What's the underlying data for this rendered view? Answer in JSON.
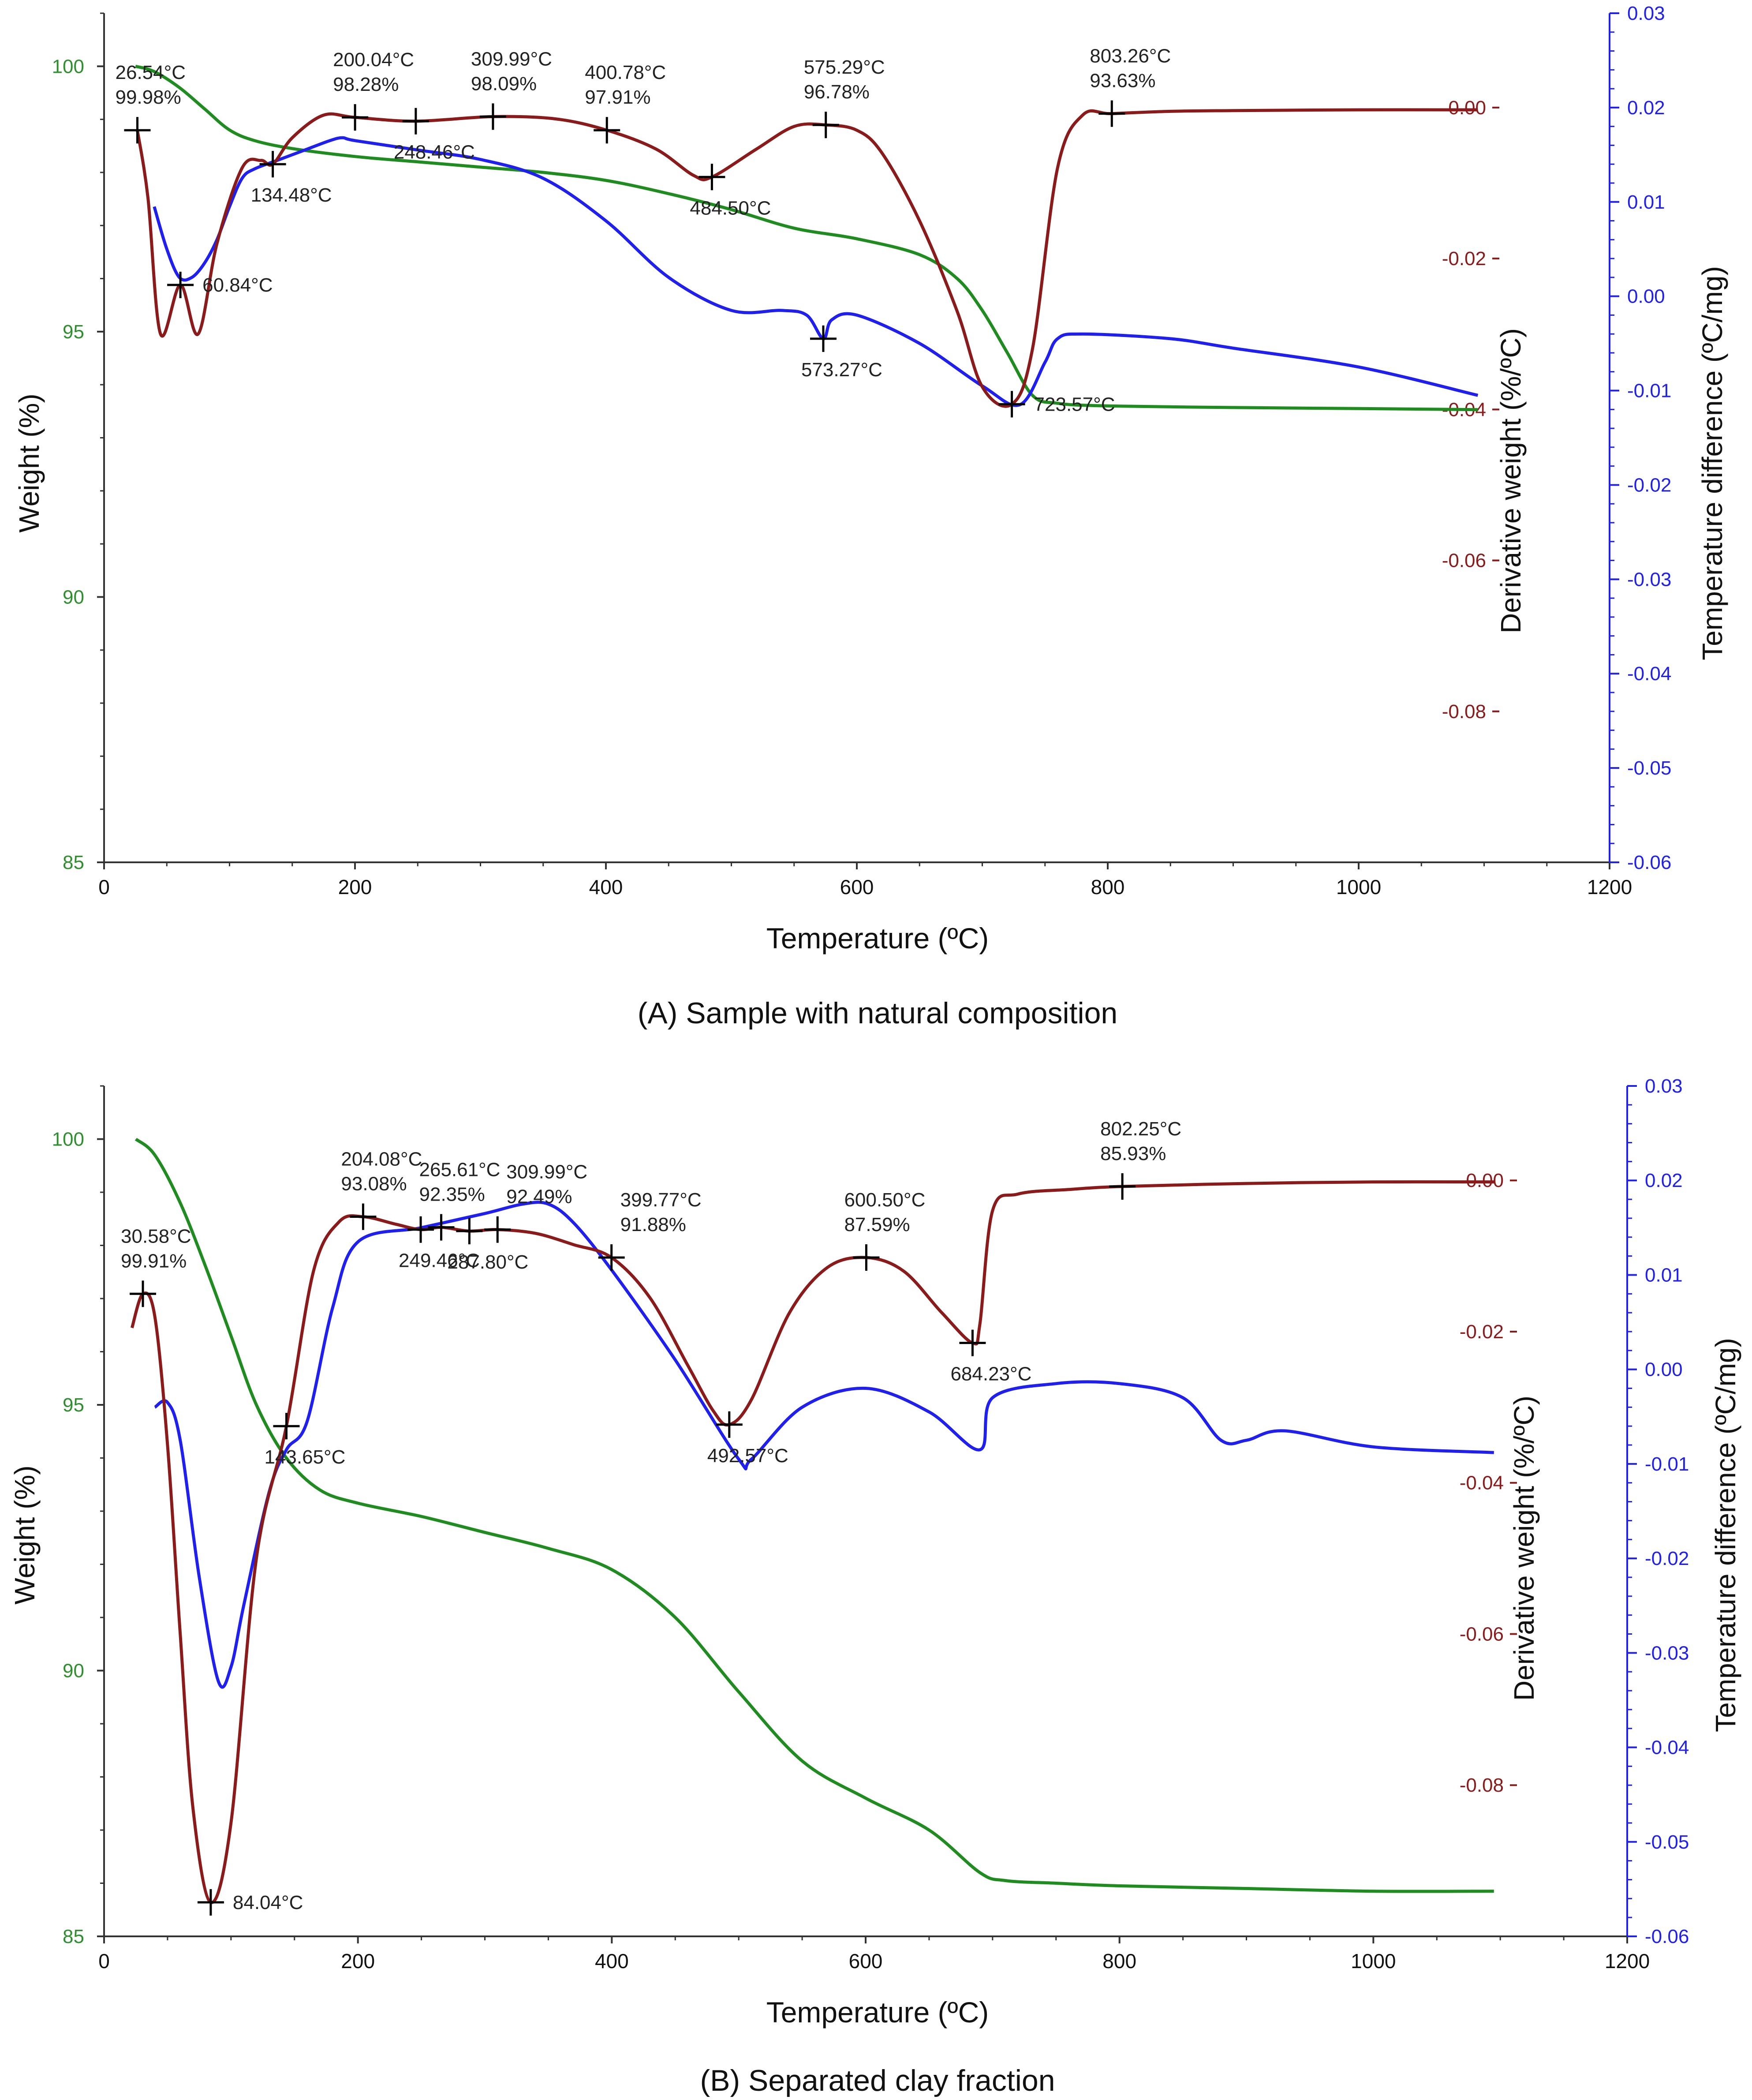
{
  "chart_data": [
    {
      "type": "line",
      "caption": "(A) Sample with natural composition",
      "xlabel": "Temperature (ºC)",
      "ylabel_left": "Weight (%)",
      "ylabel_right1": "Derivative weight (%/ºC)",
      "ylabel_right2": "Temperature difference (ºC/mg)",
      "xlim": [
        0,
        1200
      ],
      "x_ticks": [
        "0",
        "200",
        "400",
        "600",
        "800",
        "1000",
        "1200"
      ],
      "weight_ylim": [
        85,
        101
      ],
      "weight_ticks": [
        "85",
        "90",
        "95",
        "100"
      ],
      "deriv_ylim": [
        -0.1,
        0.0125
      ],
      "deriv_ticks": [
        "-0.08",
        "-0.06",
        "-0.04",
        "-0.02",
        "0.00"
      ],
      "dta_ylim": [
        -0.06,
        0.03
      ],
      "dta_ticks": [
        "-0.06",
        "-0.05",
        "-0.04",
        "-0.03",
        "-0.02",
        "-0.01",
        "0.00",
        "0.01",
        "0.02",
        "0.03"
      ],
      "colors": {
        "weight": "#1e8c1e",
        "derivative": "#8b1a1a",
        "dta": "#1f1fef"
      },
      "series": [
        {
          "name": "Weight",
          "axis": "weight",
          "x": [
            25,
            40,
            60,
            80,
            100,
            120,
            150,
            200,
            250,
            300,
            350,
            400,
            450,
            500,
            550,
            600,
            650,
            680,
            700,
            720,
            740,
            760,
            800,
            900,
            1000,
            1095
          ],
          "y": [
            100.0,
            99.9,
            99.6,
            99.2,
            98.8,
            98.6,
            98.45,
            98.3,
            98.2,
            98.1,
            98.0,
            97.85,
            97.6,
            97.3,
            96.95,
            96.75,
            96.45,
            96.0,
            95.4,
            94.6,
            93.8,
            93.65,
            93.6,
            93.57,
            93.55,
            93.53
          ]
        },
        {
          "name": "Derivative weight",
          "axis": "deriv",
          "x": [
            26.54,
            35,
            45,
            60.84,
            75,
            90,
            110,
            125,
            134.48,
            150,
            175,
            200,
            248.46,
            309.99,
            360,
            400.78,
            440,
            470,
            484.5,
            520,
            550,
            575.29,
            600,
            620,
            650,
            680,
            700,
            723.57,
            740,
            760,
            780,
            803.26,
            850,
            900,
            1000,
            1095
          ],
          "y": [
            -0.003,
            -0.012,
            -0.03,
            -0.0235,
            -0.03,
            -0.018,
            -0.008,
            -0.007,
            -0.0075,
            -0.004,
            -0.001,
            -0.0013,
            -0.0018,
            -0.0012,
            -0.0015,
            -0.003,
            -0.0055,
            -0.009,
            -0.0092,
            -0.0055,
            -0.0025,
            -0.0023,
            -0.003,
            -0.006,
            -0.015,
            -0.027,
            -0.037,
            -0.0393,
            -0.032,
            -0.008,
            -0.001,
            -0.0008,
            -0.0005,
            -0.0004,
            -0.0003,
            -0.0003
          ]
        },
        {
          "name": "Temperature difference",
          "axis": "dta",
          "x": [
            40,
            50,
            60,
            70,
            80,
            90,
            100,
            110,
            120,
            140,
            160,
            180,
            190,
            200,
            250,
            300,
            350,
            400,
            450,
            500,
            540,
            560,
            573.27,
            580,
            600,
            650,
            700,
            730,
            750,
            760,
            780,
            850,
            900,
            1000,
            1095
          ],
          "y": [
            0.0095,
            0.005,
            0.002,
            0.002,
            0.0035,
            0.006,
            0.0095,
            0.0125,
            0.0135,
            0.0145,
            0.0155,
            0.0165,
            0.0168,
            0.0165,
            0.0155,
            0.0145,
            0.0125,
            0.008,
            0.002,
            -0.0015,
            -0.0015,
            -0.002,
            -0.0045,
            -0.0025,
            -0.002,
            -0.005,
            -0.0095,
            -0.0115,
            -0.007,
            -0.0045,
            -0.004,
            -0.0045,
            -0.0055,
            -0.0075,
            -0.0105
          ]
        }
      ],
      "markers": [
        {
          "x": 26.54,
          "series": "deriv",
          "y": -0.003,
          "label": "26.54°C\n99.98%",
          "pos": "above"
        },
        {
          "x": 60.84,
          "series": "deriv",
          "y": -0.0235,
          "label": "60.84°C",
          "pos": "right"
        },
        {
          "x": 134.48,
          "series": "deriv",
          "y": -0.0075,
          "label": "134.48°C",
          "pos": "below"
        },
        {
          "x": 200.04,
          "series": "deriv",
          "y": -0.0013,
          "label": "200.04°C\n98.28%",
          "pos": "above"
        },
        {
          "x": 248.46,
          "series": "deriv",
          "y": -0.0018,
          "label": "248.46°C",
          "pos": "below"
        },
        {
          "x": 309.99,
          "series": "deriv",
          "y": -0.0012,
          "label": "309.99°C\n98.09%",
          "pos": "above"
        },
        {
          "x": 400.78,
          "series": "deriv",
          "y": -0.003,
          "label": "400.78°C\n97.91%",
          "pos": "above"
        },
        {
          "x": 484.5,
          "series": "deriv",
          "y": -0.0092,
          "label": "484.50°C",
          "pos": "below"
        },
        {
          "x": 575.29,
          "series": "deriv",
          "y": -0.0023,
          "label": "575.29°C\n96.78%",
          "pos": "above"
        },
        {
          "x": 573.27,
          "series": "dta",
          "y": -0.0045,
          "label": "573.27°C",
          "pos": "below"
        },
        {
          "x": 723.57,
          "series": "deriv",
          "y": -0.0393,
          "label": "723.57°C",
          "pos": "right"
        },
        {
          "x": 803.26,
          "series": "deriv",
          "y": -0.0008,
          "label": "803.26°C\n93.63%",
          "pos": "above"
        }
      ]
    },
    {
      "type": "line",
      "caption": "(B) Separated clay fraction",
      "xlabel": "Temperature (ºC)",
      "ylabel_left": "Weight (%)",
      "ylabel_right1": "Derivative weight (%/ºC)",
      "ylabel_right2": "Temperature difference (ºC/mg)",
      "xlim": [
        0,
        1200
      ],
      "x_ticks": [
        "0",
        "200",
        "400",
        "600",
        "800",
        "1000",
        "1200"
      ],
      "weight_ylim": [
        85,
        101
      ],
      "weight_ticks": [
        "85",
        "90",
        "95",
        "100"
      ],
      "deriv_ylim": [
        -0.1,
        0.0125
      ],
      "deriv_ticks": [
        "-0.08",
        "-0.06",
        "-0.04",
        "-0.02",
        "0.00"
      ],
      "dta_ylim": [
        -0.06,
        0.03
      ],
      "dta_ticks": [
        "-0.06",
        "-0.05",
        "-0.04",
        "-0.03",
        "-0.02",
        "-0.01",
        "0.00",
        "0.01",
        "0.02",
        "0.03"
      ],
      "colors": {
        "weight": "#1e8c1e",
        "derivative": "#8b1a1a",
        "dta": "#1f1fef"
      },
      "series": [
        {
          "name": "Weight",
          "axis": "weight",
          "x": [
            25,
            40,
            60,
            80,
            100,
            120,
            143.65,
            170,
            200,
            250,
            300,
            350,
            400,
            450,
            500,
            550,
            600,
            650,
            690,
            710,
            750,
            800,
            900,
            1000,
            1095
          ],
          "y": [
            100.0,
            99.7,
            98.8,
            97.6,
            96.3,
            95.0,
            94.0,
            93.4,
            93.15,
            92.9,
            92.6,
            92.3,
            91.9,
            91.0,
            89.6,
            88.3,
            87.6,
            87.0,
            86.2,
            86.05,
            86.0,
            85.95,
            85.9,
            85.85,
            85.85
          ]
        },
        {
          "name": "Derivative weight",
          "axis": "deriv",
          "x": [
            22,
            30.58,
            40,
            50,
            60,
            70,
            84.04,
            100,
            120,
            143.65,
            165,
            185,
            204.08,
            230,
            249.46,
            265.61,
            287.8,
            309.99,
            340,
            370,
            399.77,
            430,
            460,
            480,
            492.57,
            510,
            540,
            570,
            600.5,
            630,
            660,
            684.23,
            690,
            700,
            720,
            760,
            802.25,
            900,
            1000,
            1095
          ],
          "y": [
            -0.0195,
            -0.015,
            -0.018,
            -0.035,
            -0.06,
            -0.083,
            -0.0955,
            -0.085,
            -0.05,
            -0.0325,
            -0.012,
            -0.0055,
            -0.0048,
            -0.0058,
            -0.0065,
            -0.0062,
            -0.0067,
            -0.0065,
            -0.007,
            -0.0085,
            -0.0102,
            -0.0155,
            -0.0245,
            -0.0305,
            -0.0323,
            -0.029,
            -0.0175,
            -0.0115,
            -0.0102,
            -0.012,
            -0.0175,
            -0.0215,
            -0.019,
            -0.004,
            -0.0018,
            -0.0012,
            -0.0008,
            -0.0004,
            -0.0002,
            -0.0002
          ]
        },
        {
          "name": "Temperature difference",
          "axis": "dta",
          "x": [
            40,
            50,
            60,
            75,
            90,
            100,
            110,
            130,
            143.65,
            160,
            180,
            200,
            250,
            300,
            330,
            350,
            370,
            400,
            450,
            500,
            510,
            550,
            600,
            650,
            690,
            700,
            750,
            800,
            850,
            880,
            900,
            930,
            1000,
            1095
          ],
          "y": [
            -0.004,
            -0.0035,
            -0.0075,
            -0.022,
            -0.033,
            -0.0315,
            -0.025,
            -0.013,
            -0.0085,
            -0.0055,
            0.0065,
            0.0135,
            0.015,
            0.0165,
            0.0175,
            0.0175,
            0.0155,
            0.0105,
            0.001,
            -0.0095,
            -0.0095,
            -0.004,
            -0.002,
            -0.0045,
            -0.0085,
            -0.003,
            -0.0015,
            -0.0015,
            -0.003,
            -0.0075,
            -0.0075,
            -0.0065,
            -0.0082,
            -0.0088
          ]
        }
      ],
      "markers": [
        {
          "x": 30.58,
          "series": "deriv",
          "y": -0.015,
          "label": "30.58°C\n99.91%",
          "pos": "above"
        },
        {
          "x": 84.04,
          "series": "deriv",
          "y": -0.0955,
          "label": "84.04°C",
          "pos": "right"
        },
        {
          "x": 143.65,
          "series": "deriv",
          "y": -0.0325,
          "label": "143.65°C",
          "pos": "below"
        },
        {
          "x": 204.08,
          "series": "deriv",
          "y": -0.0048,
          "label": "204.08°C\n93.08%",
          "pos": "above"
        },
        {
          "x": 249.46,
          "series": "deriv",
          "y": -0.0065,
          "label": "249.46°C",
          "pos": "below"
        },
        {
          "x": 265.61,
          "series": "deriv",
          "y": -0.0062,
          "label": "265.61°C\n92.35%",
          "pos": "above"
        },
        {
          "x": 287.8,
          "series": "deriv",
          "y": -0.0067,
          "label": "287.80°C",
          "pos": "below"
        },
        {
          "x": 309.99,
          "series": "deriv",
          "y": -0.0065,
          "label": "309.99°C\n92.49%",
          "pos": "aboveright"
        },
        {
          "x": 399.77,
          "series": "deriv",
          "y": -0.0102,
          "label": "399.77°C\n91.88%",
          "pos": "aboveright"
        },
        {
          "x": 492.57,
          "series": "deriv",
          "y": -0.0323,
          "label": "492.57°C",
          "pos": "below"
        },
        {
          "x": 600.5,
          "series": "deriv",
          "y": -0.0102,
          "label": "600.50°C\n87.59%",
          "pos": "above"
        },
        {
          "x": 684.23,
          "series": "deriv",
          "y": -0.0215,
          "label": "684.23°C",
          "pos": "below"
        },
        {
          "x": 802.25,
          "series": "deriv",
          "y": -0.0008,
          "label": "802.25°C\n85.93%",
          "pos": "above"
        }
      ]
    }
  ]
}
